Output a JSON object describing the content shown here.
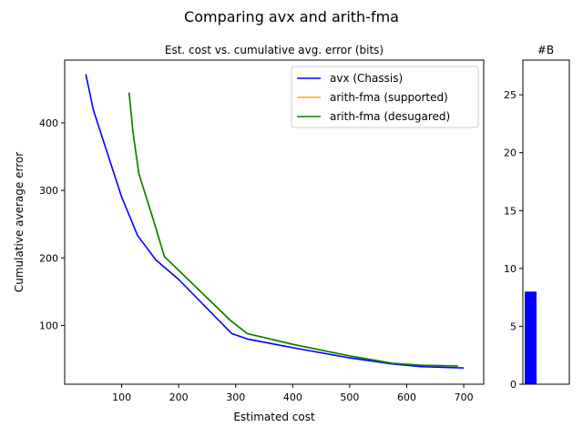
{
  "figure": {
    "title": "Comparing avx and arith-fma"
  },
  "chart_data": [
    {
      "type": "line",
      "title": "Est. cost vs. cumulative avg. error (bits)",
      "xlabel": "Estimated cost",
      "ylabel": "Cumulative average error",
      "xlim": [
        0,
        735
      ],
      "ylim": [
        13,
        493
      ],
      "xticks": [
        100,
        200,
        300,
        400,
        500,
        600,
        700
      ],
      "yticks": [
        100,
        200,
        300,
        400
      ],
      "grid": false,
      "legend": "top-right",
      "series": [
        {
          "name": "avx (Chassis)",
          "color": "#0000ff",
          "x": [
            37,
            50,
            75,
            100,
            128,
            160,
            200,
            293,
            320,
            400,
            500,
            575,
            625,
            700
          ],
          "y": [
            472,
            420,
            355,
            290,
            233,
            197,
            168,
            88,
            80,
            67,
            52,
            43,
            39,
            37
          ]
        },
        {
          "name": "arith-fma (supported)",
          "color": "#ffa500",
          "x": [
            113,
            120,
            130,
            155,
            175,
            290,
            320,
            400,
            500,
            575,
            625,
            690
          ],
          "y": [
            445,
            385,
            325,
            258,
            202,
            108,
            88,
            72,
            55,
            44,
            41,
            40
          ]
        },
        {
          "name": "arith-fma (desugared)",
          "color": "#008000",
          "x": [
            113,
            120,
            130,
            155,
            175,
            290,
            320,
            400,
            500,
            575,
            625,
            690
          ],
          "y": [
            445,
            385,
            325,
            258,
            202,
            108,
            88,
            72,
            55,
            44,
            41,
            40
          ]
        }
      ]
    },
    {
      "type": "bar",
      "title": "#B",
      "categories": [
        ""
      ],
      "values": [
        8
      ],
      "color": "#0000ff",
      "ylim": [
        0,
        28
      ],
      "yticks": [
        0,
        5,
        10,
        15,
        20,
        25
      ]
    }
  ]
}
